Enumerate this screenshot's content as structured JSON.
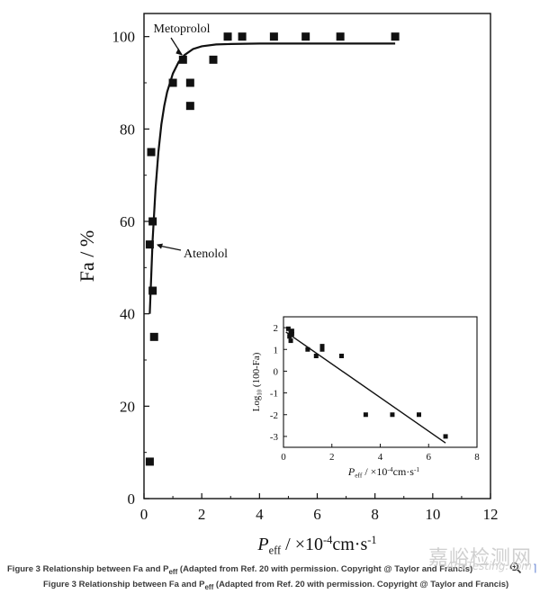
{
  "chart_data": [
    {
      "type": "scatter",
      "title": "",
      "ylabel": "Fa / %",
      "xlabel_parts": {
        "base": "P",
        "sub": "eff",
        "rest": " / ×10",
        "sup": "-4",
        "unit": "cm·s",
        "unit_sup": "-1"
      },
      "xlim": [
        0,
        12
      ],
      "ylim": [
        0,
        105
      ],
      "xticks": [
        "0",
        "2",
        "4",
        "6",
        "8",
        "10",
        "12"
      ],
      "yticks": [
        "0",
        "20",
        "40",
        "60",
        "80",
        "100"
      ],
      "grid": false,
      "points": [
        {
          "x": 0.2,
          "y": 8
        },
        {
          "x": 0.2,
          "y": 55
        },
        {
          "x": 0.3,
          "y": 45
        },
        {
          "x": 0.35,
          "y": 35
        },
        {
          "x": 0.3,
          "y": 60
        },
        {
          "x": 0.25,
          "y": 75
        },
        {
          "x": 1.0,
          "y": 90
        },
        {
          "x": 1.35,
          "y": 95
        },
        {
          "x": 1.6,
          "y": 90
        },
        {
          "x": 1.6,
          "y": 85
        },
        {
          "x": 2.4,
          "y": 95
        },
        {
          "x": 2.9,
          "y": 100
        },
        {
          "x": 3.4,
          "y": 100
        },
        {
          "x": 4.5,
          "y": 100
        },
        {
          "x": 5.6,
          "y": 100
        },
        {
          "x": 6.8,
          "y": 100
        },
        {
          "x": 8.7,
          "y": 100
        }
      ],
      "fit_curve": {
        "x": [
          0.2,
          0.3,
          0.4,
          0.5,
          0.6,
          0.7,
          0.8,
          1.0,
          1.2,
          1.4,
          1.7,
          2.0,
          2.5,
          3.0,
          4.0,
          5.0,
          6.0,
          7.0,
          8.7
        ],
        "y": [
          40,
          56,
          67,
          75,
          81,
          85,
          88,
          92,
          94.5,
          96,
          97.3,
          97.9,
          98.3,
          98.4,
          98.5,
          98.5,
          98.5,
          98.5,
          98.5
        ]
      },
      "annotations": [
        {
          "text": "Metoprolol",
          "target_x": 1.35,
          "target_y": 95
        },
        {
          "text": "Atenolol",
          "target_x": 0.25,
          "target_y": 55
        }
      ]
    },
    {
      "type": "scatter",
      "title": "",
      "ylabel_parts": {
        "base": "Log",
        "sub": "10",
        "rest": " (100-Fa)"
      },
      "xlabel_parts": {
        "base": "P",
        "sub": "eff",
        "rest": " / ×10",
        "sup": "-4",
        "unit": "cm·s",
        "unit_sup": "-1"
      },
      "xlim": [
        0,
        8
      ],
      "ylim": [
        -3.5,
        2.5
      ],
      "xticks": [
        "0",
        "2",
        "4",
        "6",
        "8"
      ],
      "yticks": [
        "2",
        "1",
        "0",
        "-1",
        "-2",
        "-3"
      ],
      "grid": false,
      "points": [
        {
          "x": 0.2,
          "y": 1.95
        },
        {
          "x": 0.25,
          "y": 1.6
        },
        {
          "x": 0.3,
          "y": 1.75
        },
        {
          "x": 0.3,
          "y": 1.4
        },
        {
          "x": 0.35,
          "y": 1.7
        },
        {
          "x": 0.35,
          "y": 1.85
        },
        {
          "x": 1.0,
          "y": 1.0
        },
        {
          "x": 1.35,
          "y": 0.7
        },
        {
          "x": 1.6,
          "y": 1.0
        },
        {
          "x": 1.6,
          "y": 1.15
        },
        {
          "x": 2.4,
          "y": 0.7
        },
        {
          "x": 3.4,
          "y": -2.0
        },
        {
          "x": 4.5,
          "y": -2.0
        },
        {
          "x": 5.6,
          "y": -2.0
        },
        {
          "x": 6.7,
          "y": -3.0
        }
      ],
      "fit_line": {
        "x": [
          0.1,
          6.7
        ],
        "y": [
          1.8,
          -3.3
        ]
      }
    }
  ],
  "captions": [
    "Figure 3 Relationship between Fa and P",
    "Figure 3 Relationship between Fa and P"
  ],
  "caption_sub": "eff",
  "caption_rest": " (Adapted from Ref. 20 with permission. Copyright @ Taylor and Francis)",
  "icons": {
    "zoom": "zoom-in-icon"
  },
  "watermark": {
    "text": "嘉峪检测网",
    "url": "AnyTesting.com"
  },
  "colors": {
    "marker": "#111111",
    "axis": "#111111",
    "caption": "#3a3a3a",
    "watermark": "#cfcfcf"
  }
}
